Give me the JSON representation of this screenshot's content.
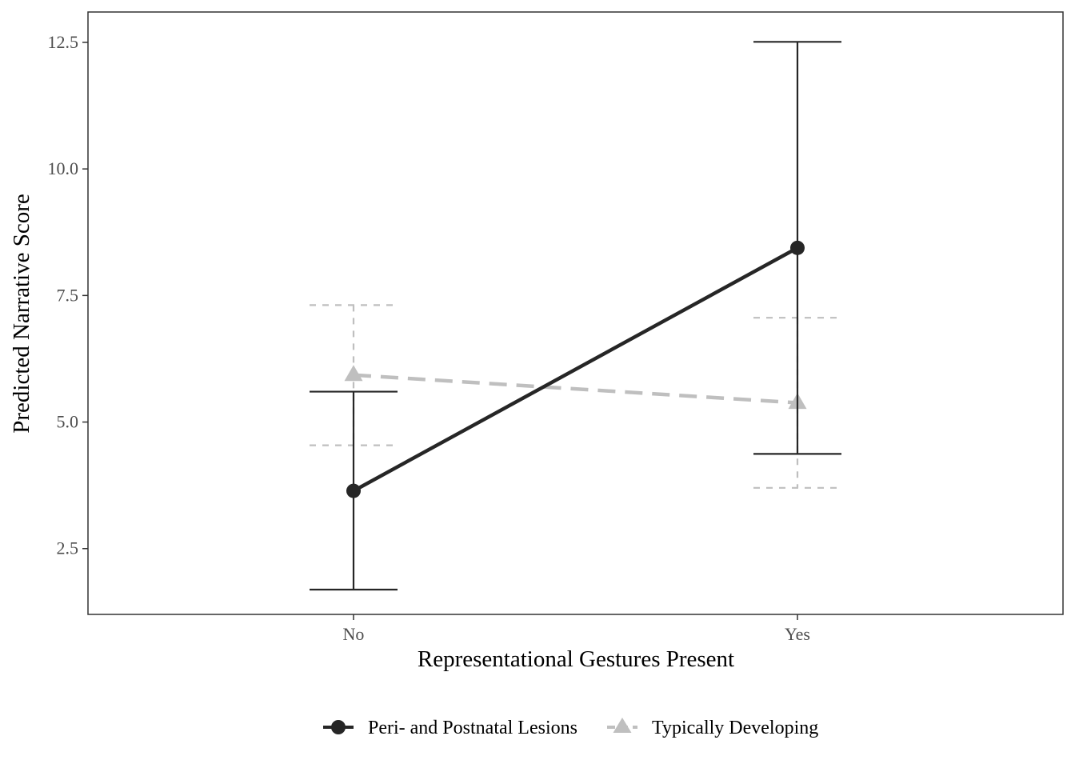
{
  "chart_data": {
    "type": "line",
    "title": "",
    "xlabel": "Representational Gestures Present",
    "ylabel": "Predicted Narrative Score",
    "categories": [
      "No",
      "Yes"
    ],
    "ylim": [
      1.2,
      13.1
    ],
    "yticks": [
      2.5,
      5.0,
      7.5,
      10.0,
      12.5
    ],
    "ytick_labels": [
      "2.5",
      "5.0",
      "7.5",
      "10.0",
      "12.5"
    ],
    "grid": false,
    "legend_position": "bottom",
    "series": [
      {
        "name": "Peri- and Postnatal Lesions",
        "values": [
          3.64,
          8.44
        ],
        "lower": [
          1.69,
          4.37
        ],
        "upper": [
          5.6,
          12.51
        ],
        "color": "#262626",
        "line_style": "solid",
        "marker": "circle"
      },
      {
        "name": "Typically Developing",
        "values": [
          5.93,
          5.38
        ],
        "lower": [
          4.54,
          3.7
        ],
        "upper": [
          7.31,
          7.06
        ],
        "color": "#bfbfbf",
        "line_style": "dashed",
        "marker": "triangle"
      }
    ]
  }
}
